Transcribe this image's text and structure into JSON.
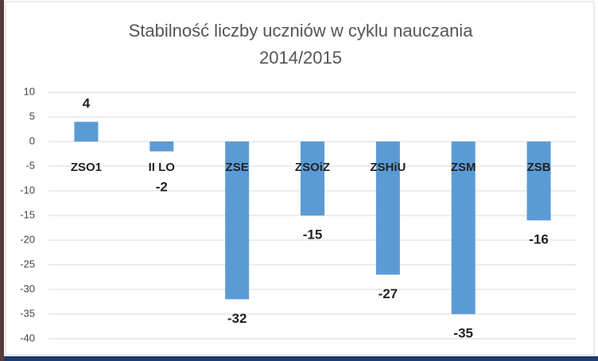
{
  "chart_data": {
    "type": "bar",
    "title": "Stabilność liczby uczniów w cyklu nauczania",
    "subtitle": "2014/2015",
    "categories": [
      "ZSO1",
      "II LO",
      "ZSE",
      "ZSOiZ",
      "ZSHiU",
      "ZSM",
      "ZSB"
    ],
    "values": [
      4,
      -2,
      -32,
      -15,
      -27,
      -35,
      -16
    ],
    "color": "#5b9bd5",
    "ylim": [
      -40,
      10
    ],
    "yticks": [
      -40,
      -35,
      -30,
      -25,
      -20,
      -15,
      -10,
      -5,
      0,
      5,
      10
    ],
    "grid": true
  }
}
